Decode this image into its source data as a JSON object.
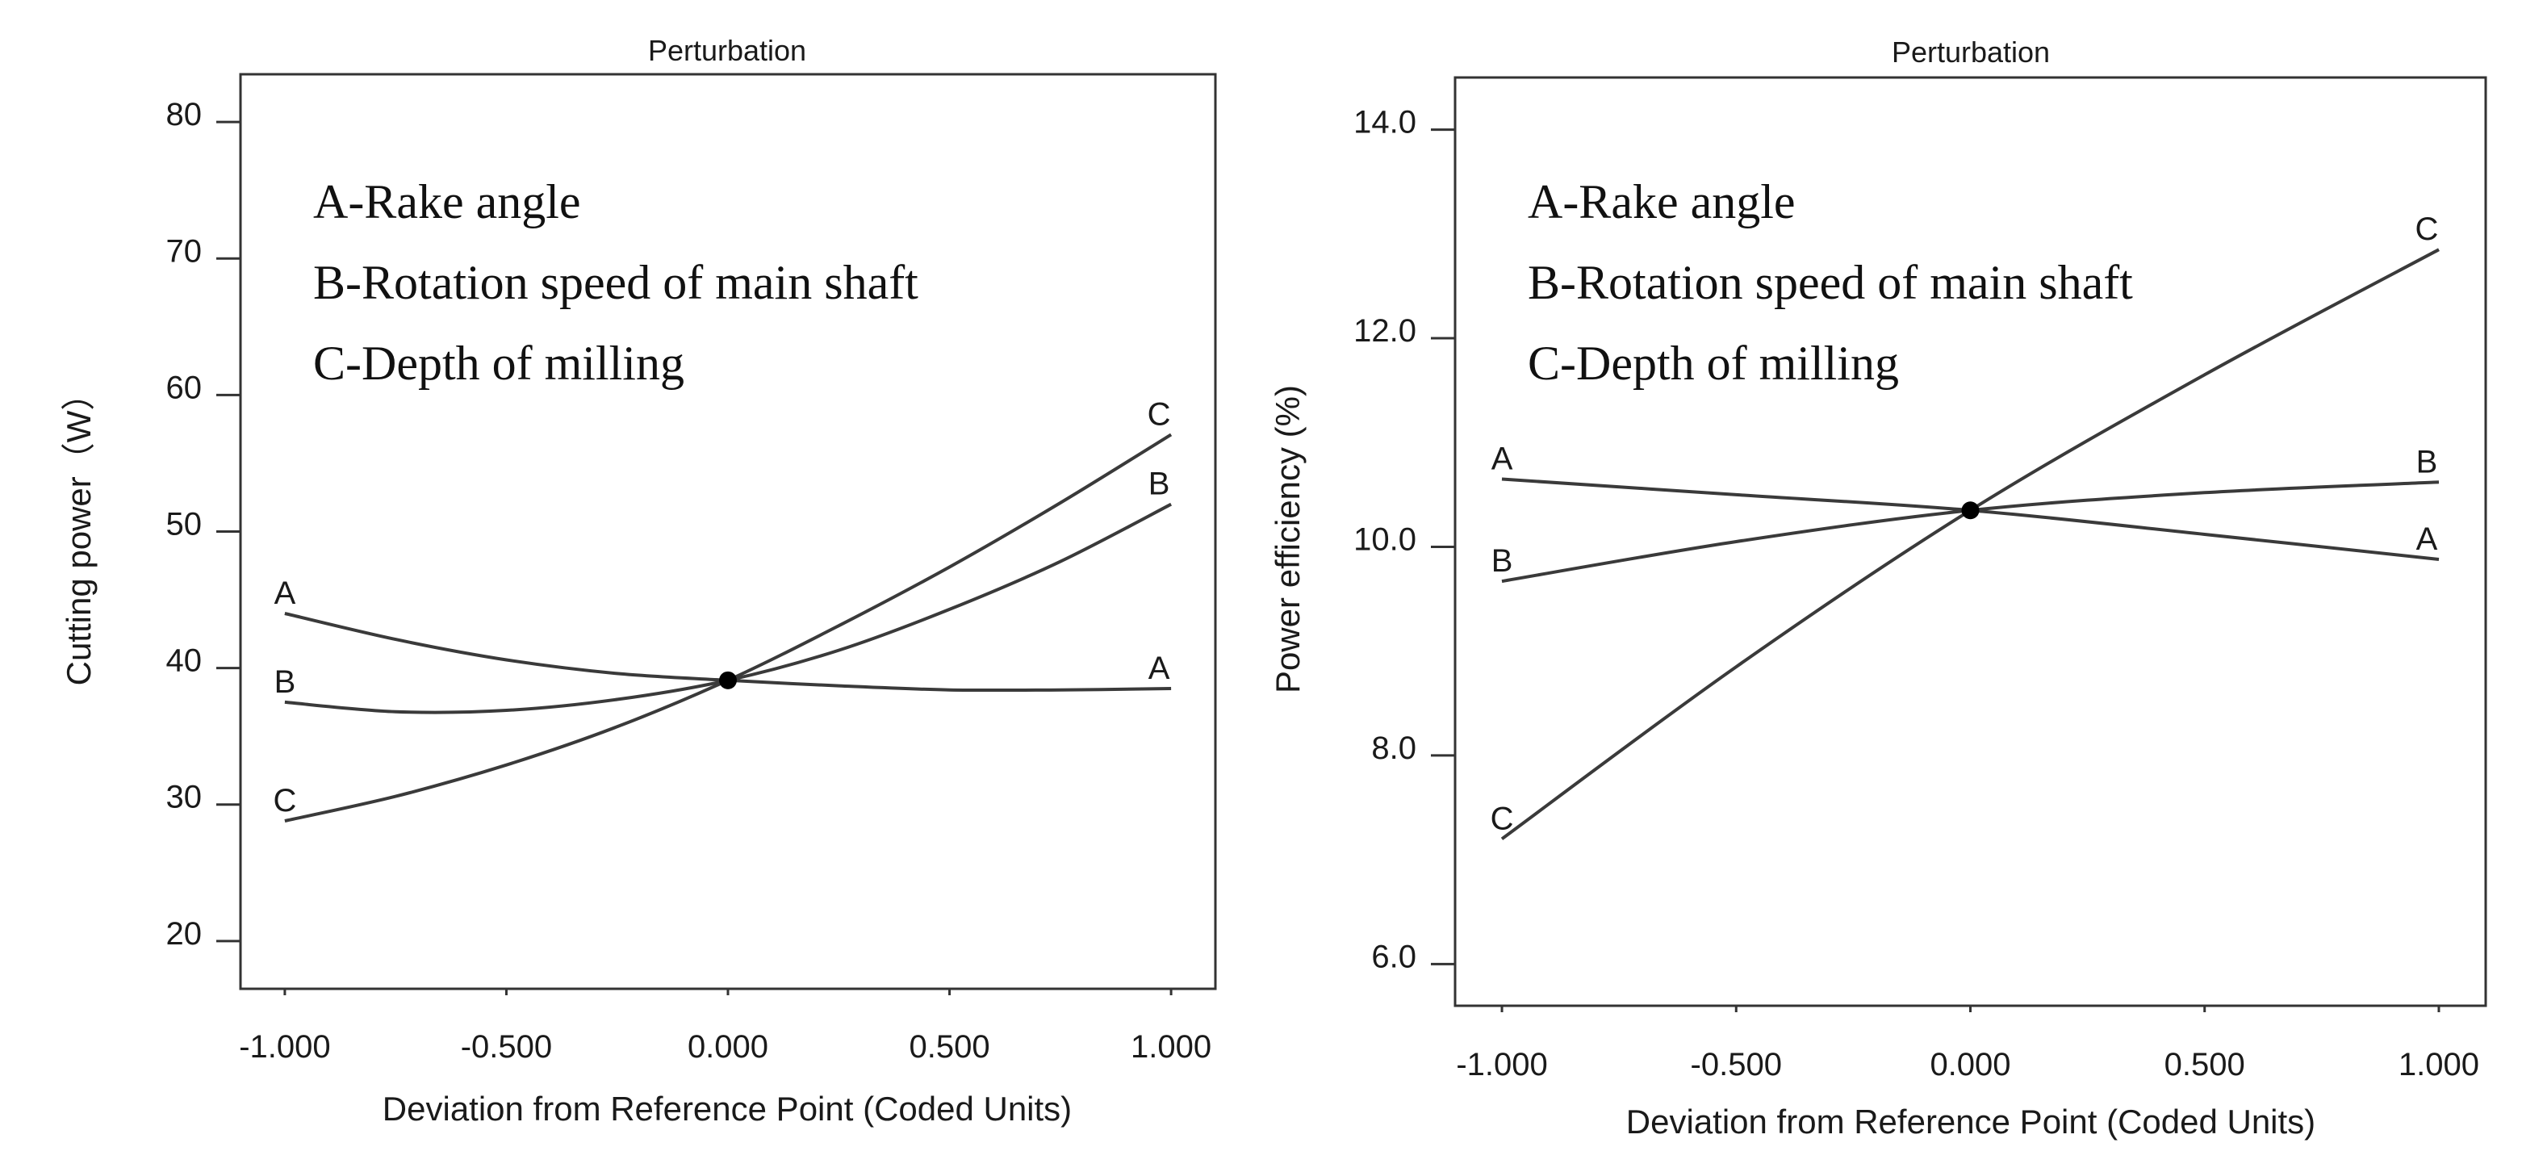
{
  "chart_data": [
    {
      "type": "line",
      "title": "Perturbation",
      "xlabel": "Deviation from Reference Point (Coded Units)",
      "ylabel": "Cutting power（W）",
      "xlim": [
        -1.1,
        1.1
      ],
      "ylim": [
        16.5,
        83.5
      ],
      "xticks": [
        -1.0,
        -0.5,
        0.0,
        0.5,
        1.0
      ],
      "xtick_labels": [
        "-1.000",
        "-0.500",
        "0.000",
        "0.500",
        "1.000"
      ],
      "yticks": [
        20,
        30,
        40,
        50,
        60,
        70,
        80
      ],
      "ytick_labels": [
        "20",
        "30",
        "40",
        "50",
        "60",
        "70",
        "80"
      ],
      "reference_point": {
        "x": 0.0,
        "y": 39.1
      },
      "legend_text": [
        "A-Rake angle",
        "B-Rotation speed of main shaft",
        "C-Depth of milling"
      ],
      "x": [
        -1.0,
        -0.75,
        -0.5,
        -0.25,
        0.0,
        0.25,
        0.5,
        0.75,
        1.0
      ],
      "series": [
        {
          "name": "A",
          "values": [
            44.0,
            42.1,
            40.6,
            39.6,
            39.1,
            38.7,
            38.4,
            38.4,
            38.5
          ]
        },
        {
          "name": "B",
          "values": [
            37.5,
            36.8,
            36.9,
            37.7,
            39.1,
            41.3,
            44.3,
            47.8,
            52.0
          ]
        },
        {
          "name": "C",
          "values": [
            28.8,
            30.6,
            32.9,
            35.7,
            39.1,
            43.1,
            47.4,
            52.1,
            57.1
          ]
        }
      ]
    },
    {
      "type": "line",
      "title": "Perturbation",
      "xlabel": "Deviation from Reference Point (Coded Units)",
      "ylabel": "Power efficiency (%)",
      "xlim": [
        -1.1,
        1.1
      ],
      "ylim": [
        5.6,
        14.5
      ],
      "xticks": [
        -1.0,
        -0.5,
        0.0,
        0.5,
        1.0
      ],
      "xtick_labels": [
        "-1.000",
        "-0.500",
        "0.000",
        "0.500",
        "1.000"
      ],
      "yticks": [
        6.0,
        8.0,
        10.0,
        12.0,
        14.0
      ],
      "ytick_labels": [
        "6.0",
        "8.0",
        "10.0",
        "12.0",
        "14.0"
      ],
      "reference_point": {
        "x": 0.0,
        "y": 10.35
      },
      "legend_text": [
        "A-Rake angle",
        "B-Rotation speed of main shaft",
        "C-Depth of milling"
      ],
      "x": [
        -1.0,
        -0.5,
        0.0,
        0.5,
        1.0
      ],
      "series": [
        {
          "name": "A",
          "values": [
            10.65,
            10.5,
            10.35,
            10.12,
            9.88
          ]
        },
        {
          "name": "B",
          "values": [
            9.67,
            10.05,
            10.35,
            10.52,
            10.62
          ]
        },
        {
          "name": "C",
          "values": [
            7.2,
            8.85,
            10.35,
            11.65,
            12.85
          ]
        }
      ]
    }
  ]
}
